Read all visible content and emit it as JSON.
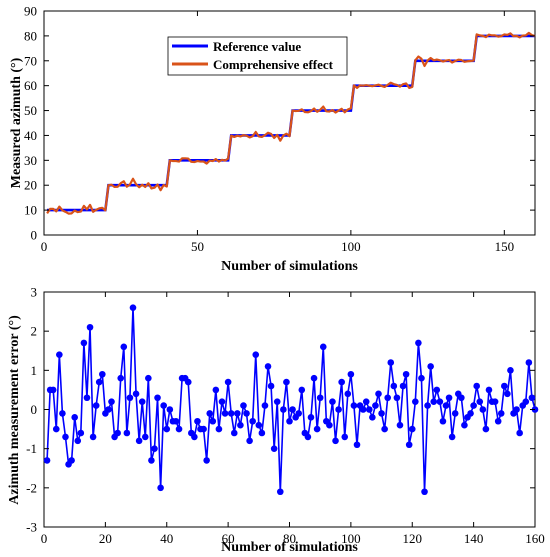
{
  "chart_data": [
    {
      "type": "line",
      "title": "",
      "xlabel": "Number of simulations",
      "ylabel": "Measured azimuth (°)",
      "xlim": [
        0,
        160
      ],
      "ylim": [
        0,
        90
      ],
      "xticks": [
        0,
        50,
        100,
        150
      ],
      "yticks": [
        0,
        10,
        20,
        30,
        40,
        50,
        60,
        70,
        80,
        90
      ],
      "legend_position": "top-center",
      "grid": false,
      "series": [
        {
          "name": "Reference value",
          "color": "#0000ff",
          "x": [
            1,
            20,
            21,
            40,
            41,
            60,
            61,
            80,
            81,
            100,
            101,
            120,
            121,
            140,
            141,
            160
          ],
          "values": [
            10,
            10,
            20,
            20,
            30,
            30,
            40,
            40,
            50,
            50,
            60,
            60,
            70,
            70,
            80,
            80
          ]
        },
        {
          "name": "Comprehensive effect",
          "color": "#d95319",
          "x": [
            1,
            2,
            3,
            4,
            5,
            6,
            7,
            8,
            9,
            10,
            11,
            12,
            13,
            14,
            15,
            16,
            17,
            18,
            19,
            20,
            21,
            22,
            23,
            24,
            25,
            26,
            27,
            28,
            29,
            30,
            31,
            32,
            33,
            34,
            35,
            36,
            37,
            38,
            39,
            40,
            41,
            42,
            43,
            44,
            45,
            46,
            47,
            48,
            49,
            50,
            51,
            52,
            53,
            54,
            55,
            56,
            57,
            58,
            59,
            60,
            61,
            62,
            63,
            64,
            65,
            66,
            67,
            68,
            69,
            70,
            71,
            72,
            73,
            74,
            75,
            76,
            77,
            78,
            79,
            80,
            81,
            82,
            83,
            84,
            85,
            86,
            87,
            88,
            89,
            90,
            91,
            92,
            93,
            94,
            95,
            96,
            97,
            98,
            99,
            100,
            101,
            102,
            103,
            104,
            105,
            106,
            107,
            108,
            109,
            110,
            111,
            112,
            113,
            114,
            115,
            116,
            117,
            118,
            119,
            120,
            121,
            122,
            123,
            124,
            125,
            126,
            127,
            128,
            129,
            130,
            131,
            132,
            133,
            134,
            135,
            136,
            137,
            138,
            139,
            140,
            141,
            142,
            143,
            144,
            145,
            146,
            147,
            148,
            149,
            150,
            151,
            152,
            153,
            154,
            155,
            156,
            157,
            158,
            159,
            160
          ],
          "values": [
            8.7,
            10.5,
            10.5,
            9.5,
            11.4,
            9.9,
            9.3,
            8.6,
            8.7,
            9.8,
            9.2,
            9.4,
            11.7,
            10.3,
            12.1,
            9.3,
            10.1,
            10.7,
            10.9,
            9.9,
            20.0,
            20.2,
            19.3,
            19.4,
            20.8,
            21.6,
            19.4,
            20.3,
            22.6,
            20.4,
            19.2,
            20.2,
            19.3,
            20.8,
            18.7,
            19.0,
            20.3,
            18.0,
            20.1,
            19.5,
            30.0,
            29.7,
            29.7,
            29.5,
            30.8,
            30.8,
            30.7,
            29.4,
            29.3,
            29.7,
            29.5,
            29.5,
            28.7,
            29.9,
            29.7,
            30.5,
            29.5,
            30.2,
            29.9,
            30.7,
            39.9,
            39.4,
            39.9,
            39.6,
            40.1,
            39.9,
            39.2,
            39.7,
            41.4,
            39.6,
            39.4,
            40.1,
            41.1,
            40.6,
            39.0,
            40.2,
            37.9,
            40.0,
            40.7,
            39.7,
            50.0,
            49.8,
            49.9,
            50.5,
            49.4,
            49.3,
            49.8,
            50.8,
            49.5,
            50.3,
            51.6,
            49.7,
            49.6,
            50.2,
            49.2,
            50.0,
            50.7,
            49.3,
            50.4,
            50.9,
            60.1,
            59.1,
            60.1,
            60.0,
            60.2,
            60.0,
            59.8,
            60.1,
            60.4,
            59.9,
            59.5,
            60.3,
            61.2,
            60.6,
            60.3,
            59.6,
            60.6,
            60.9,
            59.1,
            59.5,
            70.2,
            71.7,
            70.8,
            67.9,
            70.1,
            71.1,
            70.2,
            70.5,
            70.2,
            69.7,
            70.1,
            70.3,
            69.3,
            69.9,
            70.4,
            70.3,
            69.6,
            69.8,
            69.9,
            70.1,
            80.6,
            80.2,
            80.0,
            79.5,
            80.5,
            80.2,
            80.2,
            79.7,
            79.9,
            80.6,
            80.4,
            81.0,
            79.9,
            80.0,
            79.4,
            80.1,
            80.2,
            81.2,
            80.3,
            80.0
          ]
        }
      ]
    },
    {
      "type": "line",
      "title": "",
      "xlabel": "Number of simulations",
      "ylabel": "Azimuth measurement error (°)",
      "xlim": [
        0,
        160
      ],
      "ylim": [
        -3,
        3
      ],
      "xticks": [
        0,
        20,
        40,
        60,
        80,
        100,
        120,
        140,
        160
      ],
      "yticks": [
        -3,
        -2,
        -1,
        0,
        1,
        2,
        3
      ],
      "grid": false,
      "series": [
        {
          "color": "#0000ff",
          "markers": true,
          "x": [
            1,
            2,
            3,
            4,
            5,
            6,
            7,
            8,
            9,
            10,
            11,
            12,
            13,
            14,
            15,
            16,
            17,
            18,
            19,
            20,
            21,
            22,
            23,
            24,
            25,
            26,
            27,
            28,
            29,
            30,
            31,
            32,
            33,
            34,
            35,
            36,
            37,
            38,
            39,
            40,
            41,
            42,
            43,
            44,
            45,
            46,
            47,
            48,
            49,
            50,
            51,
            52,
            53,
            54,
            55,
            56,
            57,
            58,
            59,
            60,
            61,
            62,
            63,
            64,
            65,
            66,
            67,
            68,
            69,
            70,
            71,
            72,
            73,
            74,
            75,
            76,
            77,
            78,
            79,
            80,
            81,
            82,
            83,
            84,
            85,
            86,
            87,
            88,
            89,
            90,
            91,
            92,
            93,
            94,
            95,
            96,
            97,
            98,
            99,
            100,
            101,
            102,
            103,
            104,
            105,
            106,
            107,
            108,
            109,
            110,
            111,
            112,
            113,
            114,
            115,
            116,
            117,
            118,
            119,
            120,
            121,
            122,
            123,
            124,
            125,
            126,
            127,
            128,
            129,
            130,
            131,
            132,
            133,
            134,
            135,
            136,
            137,
            138,
            139,
            140,
            141,
            142,
            143,
            144,
            145,
            146,
            147,
            148,
            149,
            150,
            151,
            152,
            153,
            154,
            155,
            156,
            157,
            158,
            159,
            160
          ],
          "values": [
            -1.3,
            0.5,
            0.5,
            -0.5,
            1.4,
            -0.1,
            -0.7,
            -1.4,
            -1.3,
            -0.2,
            -0.8,
            -0.6,
            1.7,
            0.3,
            2.1,
            -0.7,
            0.1,
            0.7,
            0.9,
            -0.1,
            0.0,
            0.2,
            -0.7,
            -0.6,
            0.8,
            1.6,
            -0.6,
            0.3,
            2.6,
            0.4,
            -0.8,
            0.2,
            -0.7,
            0.8,
            -1.3,
            -1.0,
            0.3,
            -2.0,
            0.1,
            -0.5,
            0.0,
            -0.3,
            -0.3,
            -0.5,
            0.8,
            0.8,
            0.7,
            -0.6,
            -0.7,
            -0.3,
            -0.5,
            -0.5,
            -1.3,
            -0.1,
            -0.3,
            0.5,
            -0.5,
            0.2,
            -0.1,
            0.7,
            -0.1,
            -0.6,
            -0.1,
            -0.4,
            0.1,
            -0.1,
            -0.8,
            -0.3,
            1.4,
            -0.4,
            -0.6,
            0.1,
            1.1,
            0.6,
            -1.0,
            0.2,
            -2.1,
            0.0,
            0.7,
            -0.3,
            0.0,
            -0.2,
            -0.1,
            0.5,
            -0.6,
            -0.7,
            -0.2,
            0.8,
            -0.5,
            0.3,
            1.6,
            -0.3,
            -0.4,
            0.2,
            -0.8,
            0.0,
            0.7,
            -0.7,
            0.4,
            0.9,
            0.1,
            -0.9,
            0.1,
            0.0,
            0.2,
            0.0,
            -0.2,
            0.1,
            0.4,
            -0.1,
            -0.5,
            0.3,
            1.2,
            0.6,
            0.3,
            -0.4,
            0.6,
            0.9,
            -0.9,
            -0.5,
            0.2,
            1.7,
            0.8,
            -2.1,
            0.1,
            1.1,
            0.2,
            0.5,
            0.2,
            -0.3,
            0.1,
            0.3,
            -0.7,
            -0.1,
            0.4,
            0.3,
            -0.4,
            -0.2,
            -0.1,
            0.1,
            0.6,
            0.2,
            0.0,
            -0.5,
            0.5,
            0.2,
            0.2,
            -0.3,
            -0.1,
            0.6,
            0.4,
            1.0,
            -0.1,
            0.0,
            -0.6,
            0.1,
            0.2,
            1.2,
            0.3,
            0.0
          ]
        }
      ]
    }
  ]
}
